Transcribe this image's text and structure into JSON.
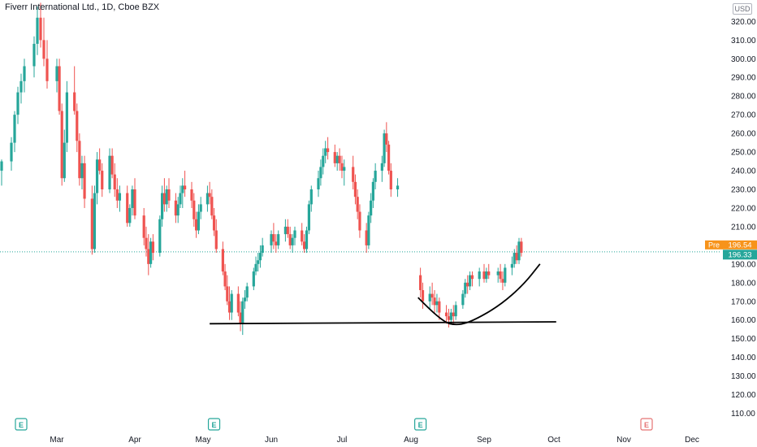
{
  "header": {
    "title": "Fiverr International Ltd., 1D, Cboe BZX",
    "currency_button": "USD"
  },
  "price_badges": {
    "pre_label": "Pre",
    "pre_value": "196.54",
    "last_value": "196.33",
    "pre_color": "#f7931a",
    "last_color": "#26a69a"
  },
  "colors": {
    "up": "#26a69a",
    "down": "#ef5350",
    "drawing": "#000000",
    "earnings_up": "#26a69a",
    "earnings_future": "#e57373"
  },
  "chart_data": {
    "type": "candlestick",
    "title": "Fiverr International Ltd., 1D, Cboe BZX",
    "xlabel": "",
    "ylabel": "",
    "ylim": [
      105,
      328
    ],
    "y_ticks": [
      "110.00",
      "120.00",
      "130.00",
      "140.00",
      "150.00",
      "160.00",
      "170.00",
      "180.00",
      "190.00",
      "200.00",
      "210.00",
      "220.00",
      "230.00",
      "240.00",
      "250.00",
      "260.00",
      "270.00",
      "280.00",
      "290.00",
      "300.00",
      "310.00",
      "320.00"
    ],
    "x_ticks": [
      "Mar",
      "Apr",
      "May",
      "Jun",
      "Jul",
      "Aug",
      "Sep",
      "Oct",
      "Nov",
      "Dec"
    ],
    "x_tick_dates": [
      "2021-03-01",
      "2021-04-01",
      "2021-05-01",
      "2021-06-01",
      "2021-07-01",
      "2021-08-01",
      "2021-09-01",
      "2021-10-01",
      "2021-11-01",
      "2021-12-01"
    ],
    "earnings_markers": [
      {
        "label": "E",
        "date": "2021-02-18",
        "status": "reported"
      },
      {
        "label": "E",
        "date": "2021-05-06",
        "status": "reported"
      },
      {
        "label": "E",
        "date": "2021-08-05",
        "status": "reported"
      },
      {
        "label": "E",
        "date": "2021-11-11",
        "status": "upcoming"
      }
    ],
    "pre_market_price": 196.54,
    "last_price": 196.33,
    "price_line": 196.54,
    "drawings": {
      "support_line": {
        "start_date": "2021-05-04",
        "start_price": 158.0,
        "end_date": "2021-10-02",
        "end_price": 159.0
      },
      "cup_curve": {
        "points": [
          [
            "2021-08-04",
            172
          ],
          [
            "2021-08-14",
            159
          ],
          [
            "2021-08-21",
            157
          ],
          [
            "2021-08-28",
            160
          ],
          [
            "2021-09-08",
            168
          ],
          [
            "2021-09-18",
            179
          ],
          [
            "2021-09-25",
            190
          ]
        ]
      }
    },
    "series": [
      {
        "values": [
          [
            "2021-02-12",
            240,
            246,
            232,
            245
          ],
          [
            "2021-02-15",
            245,
            258,
            240,
            255
          ],
          [
            "2021-02-16",
            255,
            272,
            250,
            270
          ],
          [
            "2021-02-17",
            270,
            285,
            265,
            282
          ],
          [
            "2021-02-18",
            282,
            292,
            276,
            288
          ],
          [
            "2021-02-19",
            288,
            300,
            282,
            296
          ],
          [
            "2021-02-22",
            296,
            312,
            290,
            308
          ],
          [
            "2021-02-23",
            308,
            328,
            302,
            322
          ],
          [
            "2021-02-24",
            322,
            330,
            306,
            310
          ],
          [
            "2021-02-25",
            310,
            322,
            296,
            300
          ],
          [
            "2021-02-26",
            300,
            310,
            284,
            288
          ],
          [
            "2021-03-01",
            288,
            300,
            282,
            296
          ],
          [
            "2021-03-02",
            296,
            300,
            270,
            272
          ],
          [
            "2021-03-03",
            272,
            276,
            232,
            236
          ],
          [
            "2021-03-04",
            236,
            262,
            234,
            255
          ],
          [
            "2021-03-05",
            255,
            288,
            250,
            282
          ],
          [
            "2021-03-08",
            282,
            296,
            270,
            272
          ],
          [
            "2021-03-09",
            272,
            276,
            250,
            256
          ],
          [
            "2021-03-10",
            256,
            260,
            232,
            236
          ],
          [
            "2021-03-11",
            236,
            248,
            230,
            244
          ],
          [
            "2021-03-12",
            244,
            248,
            220,
            225
          ],
          [
            "2021-03-15",
            225,
            232,
            195,
            198
          ],
          [
            "2021-03-16",
            198,
            232,
            196,
            228
          ],
          [
            "2021-03-17",
            228,
            250,
            222,
            246
          ],
          [
            "2021-03-18",
            246,
            252,
            238,
            240
          ],
          [
            "2021-03-19",
            240,
            244,
            226,
            230
          ],
          [
            "2021-03-22",
            230,
            252,
            228,
            248
          ],
          [
            "2021-03-23",
            248,
            252,
            236,
            238
          ],
          [
            "2021-03-24",
            238,
            244,
            226,
            230
          ],
          [
            "2021-03-25",
            230,
            236,
            220,
            224
          ],
          [
            "2021-03-26",
            224,
            232,
            218,
            228
          ],
          [
            "2021-03-29",
            228,
            232,
            210,
            212
          ],
          [
            "2021-03-30",
            212,
            222,
            210,
            220
          ],
          [
            "2021-03-31",
            220,
            232,
            216,
            230
          ],
          [
            "2021-04-01",
            230,
            236,
            214,
            216
          ],
          [
            "2021-04-05",
            216,
            220,
            200,
            204
          ],
          [
            "2021-04-06",
            204,
            210,
            194,
            198
          ],
          [
            "2021-04-07",
            198,
            206,
            184,
            190
          ],
          [
            "2021-04-08",
            190,
            204,
            188,
            202
          ],
          [
            "2021-04-09",
            202,
            206,
            192,
            196
          ],
          [
            "2021-04-12",
            196,
            216,
            194,
            214
          ],
          [
            "2021-04-13",
            214,
            232,
            210,
            228
          ],
          [
            "2021-04-14",
            228,
            236,
            218,
            222
          ],
          [
            "2021-04-15",
            222,
            232,
            218,
            230
          ],
          [
            "2021-04-16",
            230,
            236,
            220,
            224
          ],
          [
            "2021-04-19",
            224,
            228,
            212,
            216
          ],
          [
            "2021-04-20",
            216,
            226,
            212,
            222
          ],
          [
            "2021-04-21",
            222,
            232,
            220,
            228
          ],
          [
            "2021-04-22",
            228,
            236,
            220,
            232
          ],
          [
            "2021-04-23",
            232,
            240,
            226,
            230
          ],
          [
            "2021-04-26",
            230,
            234,
            220,
            224
          ],
          [
            "2021-04-27",
            224,
            228,
            210,
            214
          ],
          [
            "2021-04-28",
            214,
            218,
            204,
            208
          ],
          [
            "2021-04-29",
            208,
            222,
            206,
            218
          ],
          [
            "2021-04-30",
            218,
            226,
            214,
            222
          ],
          [
            "2021-05-03",
            222,
            232,
            218,
            228
          ],
          [
            "2021-05-04",
            228,
            234,
            222,
            226
          ],
          [
            "2021-05-05",
            226,
            230,
            214,
            216
          ],
          [
            "2021-05-06",
            216,
            220,
            205,
            208
          ],
          [
            "2021-05-07",
            208,
            214,
            196,
            198
          ],
          [
            "2021-05-10",
            198,
            202,
            184,
            186
          ],
          [
            "2021-05-11",
            186,
            190,
            176,
            178
          ],
          [
            "2021-05-12",
            178,
            184,
            168,
            170
          ],
          [
            "2021-05-13",
            170,
            178,
            160,
            164
          ],
          [
            "2021-05-14",
            164,
            176,
            160,
            174
          ],
          [
            "2021-05-17",
            174,
            178,
            162,
            164
          ],
          [
            "2021-05-18",
            164,
            170,
            154,
            158
          ],
          [
            "2021-05-19",
            158,
            172,
            152,
            170
          ],
          [
            "2021-05-20",
            170,
            176,
            166,
            172
          ],
          [
            "2021-05-21",
            172,
            180,
            170,
            178
          ],
          [
            "2021-05-24",
            178,
            188,
            176,
            186
          ],
          [
            "2021-05-25",
            186,
            194,
            184,
            190
          ],
          [
            "2021-05-26",
            190,
            196,
            186,
            192
          ],
          [
            "2021-05-27",
            192,
            200,
            188,
            196
          ],
          [
            "2021-05-28",
            196,
            204,
            194,
            200
          ],
          [
            "2021-06-01",
            200,
            208,
            196,
            206
          ],
          [
            "2021-06-02",
            206,
            212,
            198,
            202
          ],
          [
            "2021-06-03",
            202,
            206,
            196,
            200
          ],
          [
            "2021-06-04",
            200,
            208,
            198,
            206
          ],
          [
            "2021-06-07",
            206,
            214,
            202,
            210
          ],
          [
            "2021-06-08",
            210,
            214,
            204,
            206
          ],
          [
            "2021-06-09",
            206,
            210,
            198,
            200
          ],
          [
            "2021-06-10",
            200,
            206,
            196,
            204
          ],
          [
            "2021-06-11",
            204,
            210,
            200,
            208
          ],
          [
            "2021-06-14",
            208,
            212,
            200,
            202
          ],
          [
            "2021-06-15",
            202,
            206,
            196,
            198
          ],
          [
            "2021-06-16",
            198,
            210,
            196,
            208
          ],
          [
            "2021-06-17",
            208,
            224,
            206,
            222
          ],
          [
            "2021-06-18",
            222,
            232,
            218,
            230
          ],
          [
            "2021-06-21",
            230,
            240,
            226,
            236
          ],
          [
            "2021-06-22",
            236,
            246,
            232,
            242
          ],
          [
            "2021-06-23",
            242,
            252,
            238,
            248
          ],
          [
            "2021-06-24",
            248,
            256,
            244,
            252
          ],
          [
            "2021-06-25",
            252,
            258,
            246,
            250
          ],
          [
            "2021-06-28",
            250,
            254,
            242,
            244
          ],
          [
            "2021-06-29",
            244,
            250,
            240,
            248
          ],
          [
            "2021-06-30",
            248,
            252,
            240,
            244
          ],
          [
            "2021-07-01",
            244,
            248,
            236,
            240
          ],
          [
            "2021-07-02",
            240,
            246,
            232,
            242
          ],
          [
            "2021-07-06",
            242,
            248,
            230,
            234
          ],
          [
            "2021-07-07",
            234,
            238,
            222,
            226
          ],
          [
            "2021-07-08",
            226,
            230,
            214,
            218
          ],
          [
            "2021-07-09",
            218,
            222,
            204,
            208
          ],
          [
            "2021-07-12",
            208,
            212,
            196,
            200
          ],
          [
            "2021-07-13",
            200,
            218,
            198,
            216
          ],
          [
            "2021-07-14",
            216,
            228,
            212,
            224
          ],
          [
            "2021-07-15",
            224,
            236,
            220,
            234
          ],
          [
            "2021-07-16",
            234,
            244,
            230,
            240
          ],
          [
            "2021-07-19",
            240,
            248,
            234,
            244
          ],
          [
            "2021-07-20",
            244,
            262,
            242,
            260
          ],
          [
            "2021-07-21",
            260,
            266,
            250,
            254
          ],
          [
            "2021-07-22",
            254,
            256,
            238,
            240
          ],
          [
            "2021-07-23",
            240,
            244,
            226,
            230
          ],
          [
            "2021-07-26",
            230,
            236,
            226,
            232
          ],
          [
            "2021-08-05",
            184,
            188,
            172,
            176
          ],
          [
            "2021-08-06",
            176,
            180,
            166,
            170
          ],
          [
            "2021-08-09",
            170,
            178,
            166,
            174
          ],
          [
            "2021-08-10",
            174,
            180,
            168,
            172
          ],
          [
            "2021-08-11",
            172,
            176,
            164,
            168
          ],
          [
            "2021-08-12",
            168,
            174,
            164,
            170
          ],
          [
            "2021-08-13",
            170,
            172,
            160,
            164
          ],
          [
            "2021-08-16",
            164,
            168,
            158,
            162
          ],
          [
            "2021-08-17",
            162,
            166,
            156,
            160
          ],
          [
            "2021-08-18",
            160,
            166,
            158,
            164
          ],
          [
            "2021-08-19",
            164,
            168,
            158,
            162
          ],
          [
            "2021-08-20",
            162,
            170,
            160,
            168
          ],
          [
            "2021-08-23",
            168,
            176,
            166,
            174
          ],
          [
            "2021-08-24",
            174,
            182,
            172,
            180
          ],
          [
            "2021-08-25",
            180,
            184,
            174,
            178
          ],
          [
            "2021-08-26",
            178,
            186,
            176,
            184
          ],
          [
            "2021-08-27",
            184,
            186,
            178,
            182
          ],
          [
            "2021-08-30",
            182,
            188,
            178,
            186
          ],
          [
            "2021-09-01",
            186,
            190,
            180,
            182
          ],
          [
            "2021-09-02",
            182,
            188,
            180,
            186
          ],
          [
            "2021-09-03",
            186,
            190,
            182,
            184
          ],
          [
            "2021-09-07",
            184,
            188,
            180,
            186
          ],
          [
            "2021-09-08",
            186,
            190,
            180,
            182
          ],
          [
            "2021-09-09",
            182,
            186,
            176,
            180
          ],
          [
            "2021-09-10",
            180,
            190,
            178,
            188
          ],
          [
            "2021-09-13",
            188,
            194,
            184,
            190
          ],
          [
            "2021-09-14",
            190,
            198,
            188,
            196
          ],
          [
            "2021-09-15",
            196,
            200,
            190,
            192
          ],
          [
            "2021-09-16",
            192,
            204,
            190,
            202
          ],
          [
            "2021-09-17",
            202,
            204,
            194,
            196
          ]
        ]
      }
    ]
  }
}
